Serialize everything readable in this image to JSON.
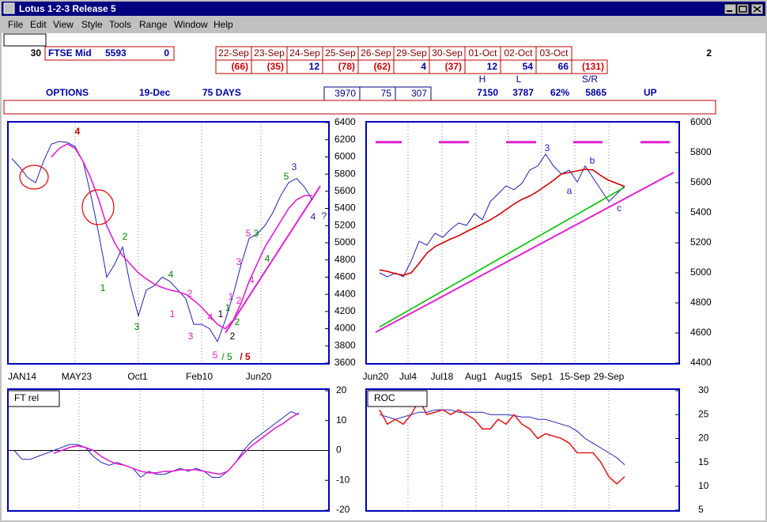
{
  "window": {
    "title": "Lotus 1-2-3 Release 5"
  },
  "menu": [
    "File",
    "Edit",
    "View",
    "Style",
    "Tools",
    "Range",
    "Window",
    "Help"
  ],
  "header": {
    "count": 30,
    "index_name": "FTSE Mid",
    "index_value": 5593,
    "index_change": 0,
    "page": 2
  },
  "daily": {
    "dates": [
      "22-Sep",
      "23-Sep",
      "24-Sep",
      "25-Sep",
      "26-Sep",
      "29-Sep",
      "30-Sep",
      "01-Oct",
      "02-Oct",
      "03-Oct"
    ],
    "values": [
      -66,
      -35,
      12,
      -78,
      -62,
      4,
      -37,
      12,
      54,
      66
    ],
    "value_labels": [
      "(66)",
      "(35)",
      "12",
      "(78)",
      "(62)",
      "4",
      "(37)",
      "12",
      "54",
      "66"
    ],
    "total": {
      "value": -131,
      "label": "(131)"
    }
  },
  "options": {
    "label": "OPTIONS",
    "expiry": "19-Dec",
    "days": "75 DAYS",
    "strikes": [
      3970,
      75,
      307
    ],
    "high_label": "H",
    "high": 7150,
    "low_label": "L",
    "low": 3787,
    "pct": "62%",
    "sr_label": "S/R",
    "sr": 5865,
    "trend": "UP"
  },
  "charts": [
    {
      "type": "line",
      "ylim": [
        3600,
        6400
      ],
      "yticks": [
        6400,
        6200,
        6000,
        5800,
        5600,
        5400,
        5200,
        5000,
        4800,
        4600,
        4400,
        4200,
        4000,
        3800,
        3600
      ],
      "xlabels": [
        "JAN14",
        "MAY23",
        "Oct1",
        "Feb10",
        "Jun20"
      ],
      "series": [
        {
          "color": "#2020b0",
          "values": [
            5980,
            5880,
            5760,
            5700,
            5950,
            6150,
            6180,
            6170,
            6120,
            5950,
            5550,
            5100,
            4600,
            4750,
            4950,
            4500,
            4150,
            4450,
            4500,
            4600,
            4550,
            4450,
            4350,
            4050,
            4050,
            4000,
            3850,
            4100,
            4400,
            4750,
            5050,
            5100,
            5200,
            5350,
            5550,
            5700,
            5750,
            5650,
            5500
          ]
        },
        {
          "color": "#e020d0",
          "values": [
            null,
            null,
            null,
            null,
            null,
            6000,
            6100,
            6150,
            6100,
            5950,
            5750,
            5500,
            5200,
            5000,
            4850,
            4750,
            4650,
            4580,
            4520,
            4480,
            4450,
            4430,
            4400,
            4330,
            4250,
            4150,
            4050,
            4000,
            4100,
            4300,
            4550,
            4750,
            4950,
            5100,
            5250,
            5400,
            5500,
            5550,
            5550
          ]
        }
      ],
      "trendline": {
        "color": "#e020d0",
        "values": [
          3950,
          5660
        ]
      },
      "highlight_color": "#e00000",
      "annotations": [
        {
          "text": "4",
          "color": "#c00000"
        },
        {
          "text": "1",
          "color": "#008000"
        },
        {
          "text": "2",
          "color": "#008000"
        },
        {
          "text": "3",
          "color": "#008000"
        },
        {
          "text": "4",
          "color": "#008000"
        },
        {
          "text": "1",
          "color": "#e020c0"
        },
        {
          "text": "2",
          "color": "#e020c0"
        },
        {
          "text": "3",
          "color": "#e020c0"
        },
        {
          "text": "4",
          "color": "#e020c0"
        },
        {
          "text": "5",
          "color": "#e020c0"
        },
        {
          "text": "/ 5",
          "color": "#008000"
        },
        {
          "text": "/ 5",
          "color": "#c00000"
        },
        {
          "text": "1",
          "color": "#000000"
        },
        {
          "text": "1",
          "color": "#008000"
        },
        {
          "text": "2",
          "color": "#000000"
        },
        {
          "text": "2",
          "color": "#008000"
        },
        {
          "text": "1",
          "color": "#e020c0"
        },
        {
          "text": "2",
          "color": "#e020c0"
        },
        {
          "text": "3",
          "color": "#e020c0"
        },
        {
          "text": "4",
          "color": "#e020c0"
        },
        {
          "text": "5",
          "color": "#e020c0"
        },
        {
          "text": "3",
          "color": "#008000"
        },
        {
          "text": "4",
          "color": "#008000"
        },
        {
          "text": "5",
          "color": "#008000"
        },
        {
          "text": "3",
          "color": "#2020a0"
        },
        {
          "text": "4",
          "color": "#2020a0"
        },
        {
          "text": "?",
          "color": "#2020a0"
        }
      ]
    },
    {
      "type": "line",
      "ylim": [
        4400,
        6000
      ],
      "yticks": [
        6000,
        5800,
        5600,
        5400,
        5200,
        5000,
        4800,
        4600,
        4400
      ],
      "xlabels": [
        "Jun20",
        "Jul4",
        "Jul18",
        "Aug1",
        "Aug15",
        "Sep1",
        "15-Sep",
        "29-Sep"
      ],
      "series": [
        {
          "color": "#2020b0",
          "values": [
            5000,
            4974,
            5000,
            4974,
            5079,
            5210,
            5184,
            5263,
            5237,
            5290,
            5332,
            5316,
            5395,
            5353,
            5474,
            5526,
            5579,
            5553,
            5595,
            5684,
            5711,
            5790,
            5711,
            5658,
            5684,
            5605,
            5711,
            5632,
            5553,
            5474,
            5526,
            5579
          ]
        },
        {
          "color": "#d00000",
          "values": [
            5020,
            5010,
            4995,
            4985,
            5000,
            5063,
            5132,
            5174,
            5200,
            5226,
            5247,
            5274,
            5300,
            5326,
            5353,
            5384,
            5421,
            5458,
            5489,
            5511,
            5542,
            5579,
            5616,
            5658,
            5668,
            5679,
            5689,
            5684,
            5647,
            5616,
            5595,
            5574
          ]
        },
        {
          "color": "#00c000",
          "values": [
            4640,
            4670,
            4700,
            4730,
            4760,
            4790,
            4820,
            4850,
            4880,
            4910,
            4940,
            4970,
            5000,
            5030,
            5060,
            5090,
            5120,
            5150,
            5180,
            5210,
            5240,
            5270,
            5300,
            5330,
            5360,
            5390,
            5420,
            5450,
            5480,
            5510,
            5540,
            5570
          ]
        }
      ],
      "trendline": {
        "color": "#e020d0",
        "values": [
          4605,
          5668
        ]
      },
      "level": {
        "color": "#e020d0",
        "value": 5870
      },
      "annotations": [
        {
          "text": "3",
          "color": "#2020c0"
        },
        {
          "text": "a",
          "color": "#2020c0"
        },
        {
          "text": "b",
          "color": "#2020c0"
        },
        {
          "text": "c",
          "color": "#2020c0"
        }
      ]
    },
    {
      "type": "line",
      "title": "FT rel",
      "ylim": [
        -20,
        20
      ],
      "yticks": [
        20,
        10,
        0,
        -10,
        -20
      ],
      "zero_line": true,
      "series": [
        {
          "color": "#2020b0",
          "values": [
            0,
            -3,
            -3,
            -2,
            -1,
            0,
            1,
            2,
            2,
            1,
            -2,
            -4,
            -5,
            -4,
            -5,
            -6,
            -9,
            -7,
            -8,
            -8,
            -7,
            -6,
            -7,
            -6,
            -7,
            -9,
            -9,
            -7,
            -4,
            0,
            3,
            5,
            7,
            9,
            11,
            13,
            12
          ]
        },
        {
          "color": "#e020d0",
          "values": [
            null,
            null,
            null,
            null,
            null,
            -1,
            0,
            1,
            1.5,
            1,
            0,
            -2,
            -3.5,
            -4.5,
            -5,
            -6,
            -7,
            -7.5,
            -7.5,
            -7,
            -7,
            -6.5,
            -6.5,
            -6.5,
            -7,
            -7.5,
            -8,
            -7,
            -4,
            -1,
            1.5,
            3.5,
            5.5,
            7.5,
            9,
            11,
            12.5
          ]
        }
      ]
    },
    {
      "type": "line",
      "title": "ROC",
      "ylim": [
        5,
        30
      ],
      "yticks": [
        30,
        25,
        20,
        15,
        10,
        5
      ],
      "series": [
        {
          "color": "#2020b0",
          "values": [
            25,
            24.5,
            24,
            24.5,
            25,
            25.5,
            25.5,
            26,
            26,
            26,
            25.5,
            25.5,
            25.5,
            25.5,
            25,
            25,
            25,
            24.8,
            24.5,
            24.5,
            24,
            24,
            23.5,
            23,
            22.5,
            21.5,
            20,
            19,
            18,
            17,
            16,
            14.5
          ]
        },
        {
          "color": "#e02020",
          "values": [
            26,
            23,
            24,
            23,
            25,
            28,
            25,
            25.5,
            26,
            25,
            26,
            25,
            24,
            22,
            22,
            24,
            23,
            25,
            23,
            22,
            20,
            21,
            20.5,
            20,
            19,
            17,
            17,
            17,
            15,
            12,
            10.5,
            12
          ]
        }
      ]
    }
  ]
}
